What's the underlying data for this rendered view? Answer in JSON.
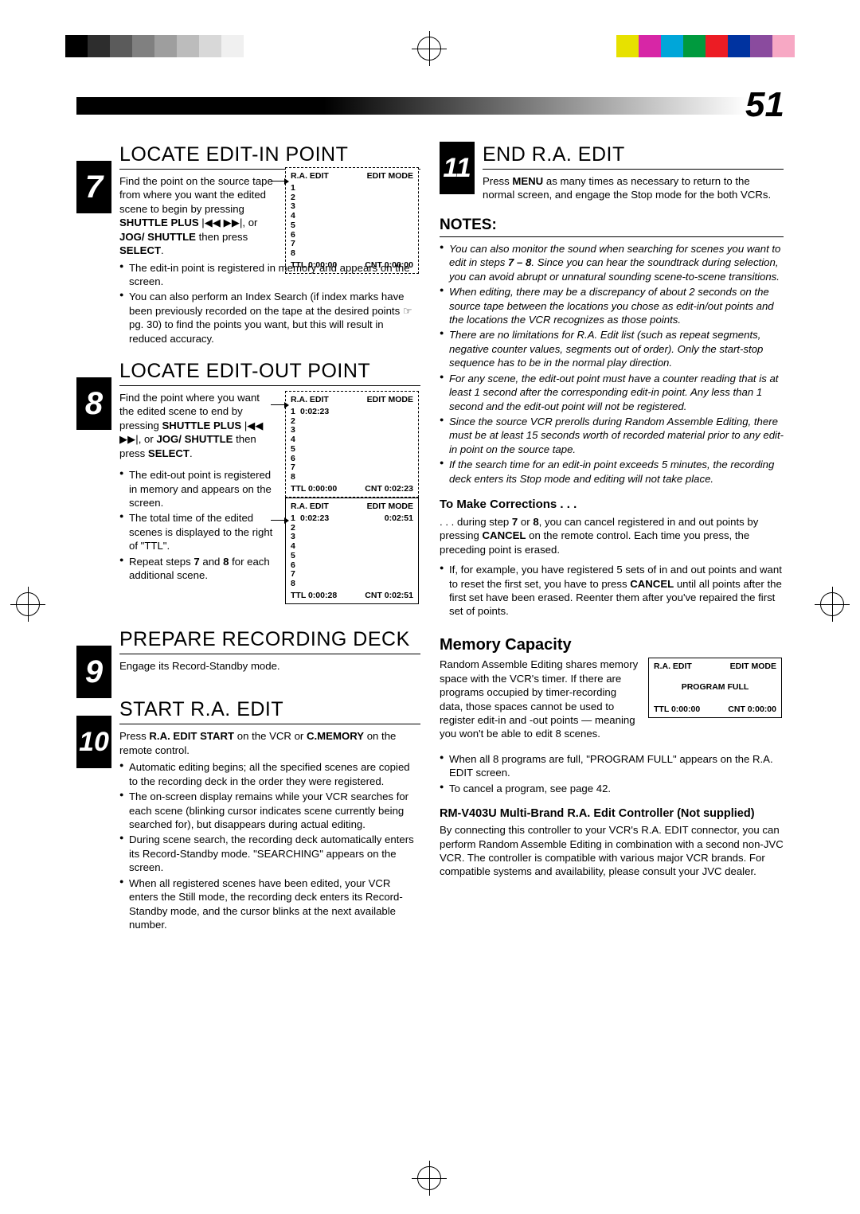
{
  "page_number": "51",
  "print_marks": {
    "grays": [
      "#000000",
      "#2d2d2d",
      "#5b5b5b",
      "#808080",
      "#9e9e9e",
      "#bcbcbc",
      "#d8d8d8",
      "#f0f0f0"
    ],
    "colors": [
      "#e7e100",
      "#d726a6",
      "#00a6d9",
      "#009a3e",
      "#ec1c24",
      "#0033a0",
      "#8a4b9e",
      "#f7a8c4"
    ]
  },
  "steps": {
    "s7": {
      "num": "7",
      "title": "LOCATE EDIT-IN POINT",
      "intro_html": "Find the point on the source tape from where you want the edited scene to begin by pressing <b>SHUTTLE PLUS</b> |◀◀ ▶▶|, or <b>JOG/ SHUTTLE</b> then press <b>SELECT</b>.",
      "bullets": [
        "The edit-in point is registered in memory and appears on the screen.",
        "You can also perform an Index Search (if index marks have been previously recorded on the tape at the desired points ☞ pg. 30) to find the points you want, but this will result in reduced accuracy."
      ],
      "osd": {
        "head_l": "R.A. EDIT",
        "head_r": "EDIT MODE",
        "rows": [
          [
            "1",
            ""
          ],
          [
            "2",
            ""
          ],
          [
            "3",
            ""
          ],
          [
            "4",
            ""
          ],
          [
            "5",
            ""
          ],
          [
            "6",
            ""
          ],
          [
            "7",
            ""
          ],
          [
            "8",
            ""
          ]
        ],
        "foot_l": "TTL 0:00:00",
        "foot_r": "CNT 0:00:00"
      }
    },
    "s8": {
      "num": "8",
      "title": "LOCATE EDIT-OUT POINT",
      "intro_html": "Find the point where you want the edited scene to end by pressing <b>SHUTTLE PLUS</b> |◀◀ ▶▶|, or <b>JOG/ SHUTTLE</b> then press <b>SELECT</b>.",
      "bullets": [
        "The edit-out point is registered in memory and appears on the screen.",
        "The total time of the edited scenes is displayed to the right of \"TTL\".",
        "Repeat steps <b>7</b> and <b>8</b> for each additional scene."
      ],
      "osd1": {
        "head_l": "R.A. EDIT",
        "head_r": "EDIT MODE",
        "rows": [
          [
            "1",
            "0:02:23"
          ],
          [
            "2",
            ""
          ],
          [
            "3",
            ""
          ],
          [
            "4",
            ""
          ],
          [
            "5",
            ""
          ],
          [
            "6",
            ""
          ],
          [
            "7",
            ""
          ],
          [
            "8",
            ""
          ]
        ],
        "foot_l": "TTL 0:00:00",
        "foot_r": "CNT 0:02:23"
      },
      "osd2": {
        "head_l": "R.A. EDIT",
        "head_r": "EDIT MODE",
        "rows": [
          [
            "1",
            "0:02:23"
          ],
          [
            "2",
            ""
          ],
          [
            "3",
            ""
          ],
          [
            "4",
            ""
          ],
          [
            "5",
            ""
          ],
          [
            "6",
            ""
          ],
          [
            "7",
            ""
          ],
          [
            "8",
            ""
          ]
        ],
        "row1_r": "0:02:51",
        "foot_l": "TTL 0:00:28",
        "foot_r": "CNT 0:02:51"
      }
    },
    "s9": {
      "num": "9",
      "title": "PREPARE RECORDING DECK",
      "intro": "Engage its Record-Standby mode."
    },
    "s10": {
      "num": "10",
      "title": "START R.A. EDIT",
      "intro_html": "Press <b>R.A. EDIT START</b> on the VCR or <b>C.MEMORY</b> on the remote control.",
      "bullets": [
        "Automatic editing begins; all the specified scenes are copied to the recording deck in the order they were registered.",
        "The on-screen display remains while your VCR searches for each scene (blinking cursor indicates scene currently being searched for), but disappears during actual editing.",
        "During scene search, the recording deck automatically enters its Record-Standby mode. \"SEARCHING\" appears on the screen.",
        "When all registered scenes have been edited, your VCR enters the Still mode, the recording deck enters its Record-Standby mode, and the cursor blinks at the next available number."
      ]
    },
    "s11": {
      "num": "11",
      "title": "END R.A. EDIT",
      "intro_html": "Press <b>MENU</b> as many times as necessary to return to the normal screen, and engage the Stop mode  for the both VCRs."
    }
  },
  "notes": {
    "heading": "NOTES:",
    "items": [
      "You can also monitor the sound when searching for scenes you want to edit in steps <b>7 – 8</b>. Since you can hear the soundtrack during selection, you can avoid abrupt or unnatural sounding scene-to-scene transitions.",
      "When editing, there may be a discrepancy of about 2 seconds on the source tape between the locations you chose as edit-in/out points and the locations the VCR recognizes as those points.",
      "There are no limitations for R.A. Edit list (such as repeat segments, negative counter values, segments out of order). Only the start-stop sequence has to be in the normal play direction.",
      "For any scene, the edit-out point must have a counter reading that is at least 1 second after the corresponding edit-in point. Any less than 1 second and the edit-out point will not be registered.",
      "Since the source VCR prerolls during Random Assemble Editing, there must be at least 15 seconds worth of recorded material prior to any edit-in point on the source tape.",
      "If the search time for an edit-in point exceeds 5 minutes, the recording deck enters its Stop mode and editing will not take place."
    ],
    "corrections": {
      "heading": "To Make Corrections . . .",
      "p1_html": ". . . during step <b>7</b> or <b>8</b>, you can cancel registered in and out points by pressing <b>CANCEL</b> on the remote control. Each time you press, the preceding point is erased.",
      "bullet_html": "If, for example, you have registered 5 sets of in and out points and want to reset the first set, you have to press <b>CANCEL</b> until all points after the first set have been erased. Reenter them after you've repaired the first set of points."
    }
  },
  "memory": {
    "heading": "Memory Capacity",
    "intro": "Random Assemble Editing shares memory space with the VCR's timer. If there are programs occupied by timer-recording data, those spaces cannot be used to register edit-in and -out points — meaning you won't be able to edit 8 scenes.",
    "osd": {
      "head_l": "R.A. EDIT",
      "head_r": "EDIT MODE",
      "center": "PROGRAM FULL",
      "foot_l": "TTL 0:00:00",
      "foot_r": "CNT 0:00:00"
    },
    "bullets": [
      "When all 8 programs are full, \"PROGRAM FULL\" appears on the R.A. EDIT screen.",
      "To cancel a program, see page 42."
    ],
    "controller": {
      "heading": "RM-V403U Multi-Brand R.A. Edit Controller (Not supplied)",
      "body": "By connecting this controller to your VCR's R.A. EDIT connector, you can perform Random Assemble Editing in combination with a second non-JVC VCR. The controller is compatible with various major VCR brands. For compatible systems and availability, please consult your JVC dealer."
    }
  },
  "style": {
    "page_num_fontsize": 44,
    "step_title_fontsize": 25,
    "step_num_fontsize": 40,
    "notes_head_fontsize": 19,
    "memory_head_fontsize": 20
  }
}
